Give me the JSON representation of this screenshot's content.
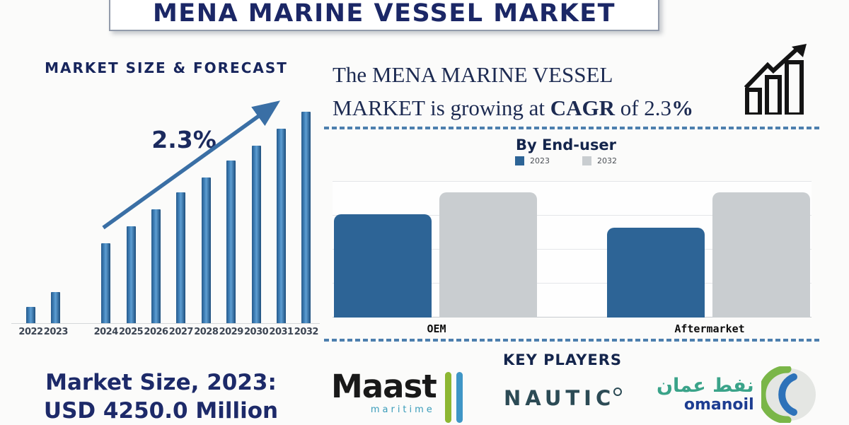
{
  "page": {
    "title_banner": "MENA MARINE VESSEL MARKET"
  },
  "colors": {
    "heading_navy": "#14254c",
    "title_navy": "#1b2766",
    "bar_blue": "#2d6496",
    "bar_gray": "#c9cdd0",
    "arrow_blue": "#3a6fa5",
    "dashed_line_blue": "#4d7fae",
    "maast_green": "#8db733",
    "maast_blue": "#3f96c6",
    "maast_teal": "#3a9cba",
    "nautic_teal": "#2c4b55",
    "omanoil_green": "#7ab648",
    "omanoil_blue": "#2d72b9",
    "omanoil_navy": "#1d3d91",
    "omanoil_arabic_teal": "#3aa389"
  },
  "forecast_chart": {
    "heading": "MARKET SIZE & FORECAST",
    "cagr_label": "2.3%"
  },
  "growth_statement": {
    "line1": "The MENA MARINE VESSEL",
    "line2_pre": "MARKET is growing at ",
    "line2_bold1": "CAGR",
    "line2_mid": " of 2.3",
    "line2_bold2": "%"
  },
  "end_user_chart": {
    "heading": "By End-user"
  },
  "market_size": {
    "line1": "Market Size, 2023:",
    "line2": "USD 4250.0 Million"
  },
  "key_players": {
    "heading": "KEY PLAYERS",
    "maast": {
      "name": "Maast",
      "sub": "maritime"
    },
    "nautic": {
      "name": "NAUTIC"
    },
    "omanoil": {
      "arabic": "نفط عمان",
      "name": "omanoil"
    }
  },
  "chart_data": [
    {
      "type": "bar",
      "title": "MARKET SIZE & FORECAST",
      "categories": [
        "2022",
        "2023",
        "2024",
        "2025",
        "2026",
        "2027",
        "2028",
        "2029",
        "2030",
        "2031",
        "2032"
      ],
      "values": [
        8,
        15,
        38,
        46,
        54,
        62,
        69,
        77,
        84,
        92,
        100
      ],
      "value_note": "relative bar heights in % of tallest bar (no value axis shown)",
      "xlabel": "",
      "ylabel": "",
      "annotation": "2.3% CAGR trend arrow over 2024-2032",
      "known_points": {
        "2023": "USD 4250.0 Million"
      },
      "grid": false,
      "legend": false
    },
    {
      "type": "bar",
      "title": "By End-user",
      "categories": [
        "OEM",
        "Aftermarket"
      ],
      "series": [
        {
          "name": "2023",
          "values": [
            76,
            66
          ],
          "color": "#2d6496"
        },
        {
          "name": "2032",
          "values": [
            92,
            92
          ],
          "color": "#c9cdd0"
        }
      ],
      "value_note": "relative bar heights in % of plot height (no value axis shown)",
      "ylim": [
        0,
        100
      ],
      "grid": true,
      "legend_position": "top"
    }
  ]
}
